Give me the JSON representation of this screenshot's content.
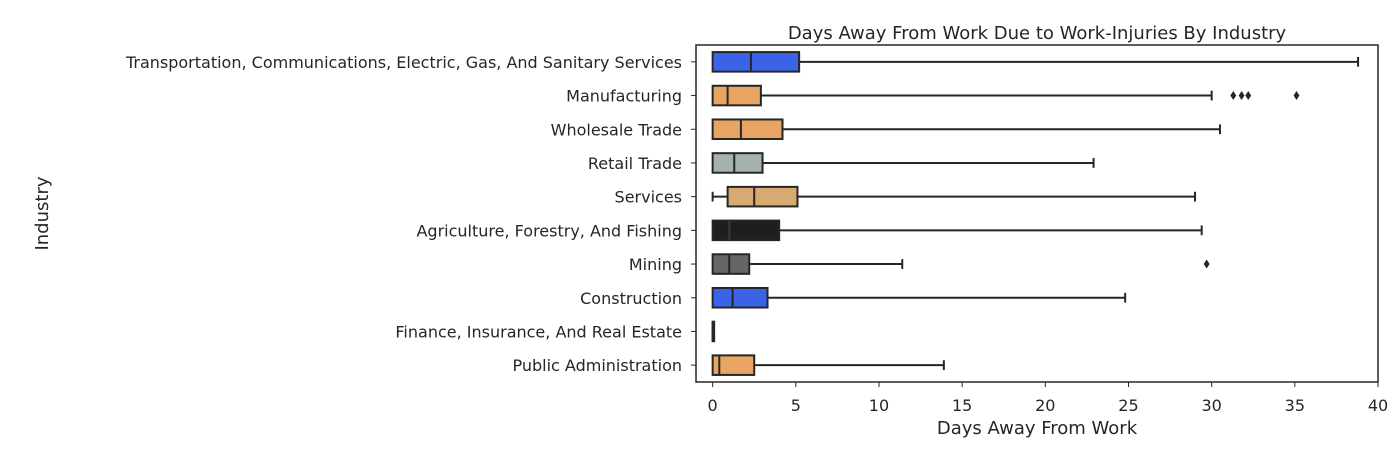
{
  "chart_data": {
    "type": "boxplot",
    "orientation": "horizontal",
    "title": "Days Away From Work Due to Work-Injuries By Industry",
    "xlabel": "Days Away From Work",
    "ylabel": "Industry",
    "xlim": [
      -1,
      40
    ],
    "xticks": [
      0,
      5,
      10,
      15,
      20,
      25,
      30,
      35,
      40
    ],
    "grid": false,
    "legend": "none",
    "categories": [
      "Transportation, Communications, Electric, Gas, And Sanitary Services",
      "Manufacturing",
      "Wholesale Trade",
      "Retail Trade",
      "Services",
      "Agriculture, Forestry, And Fishing",
      "Mining",
      "Construction",
      "Finance, Insurance, And Real Estate",
      "Public Administration"
    ],
    "boxes": [
      {
        "whisker_low": 0,
        "q1": 0,
        "median": 2.3,
        "q3": 5.2,
        "whisker_high": 38.8,
        "outliers": [],
        "color": "#3a63e8"
      },
      {
        "whisker_low": 0,
        "q1": 0,
        "median": 0.9,
        "q3": 2.9,
        "whisker_high": 30.0,
        "outliers": [
          31.3,
          31.8,
          32.2,
          35.1
        ],
        "color": "#e8a463"
      },
      {
        "whisker_low": 0,
        "q1": 0,
        "median": 1.7,
        "q3": 4.2,
        "whisker_high": 30.5,
        "outliers": [],
        "color": "#e8a463"
      },
      {
        "whisker_low": 0,
        "q1": 0,
        "median": 1.3,
        "q3": 3.0,
        "whisker_high": 22.9,
        "outliers": [],
        "color": "#a6b3ad"
      },
      {
        "whisker_low": 0,
        "q1": 0.9,
        "median": 2.5,
        "q3": 5.1,
        "whisker_high": 29.0,
        "outliers": [],
        "color": "#d8aa72"
      },
      {
        "whisker_low": 0,
        "q1": 0,
        "median": 1.0,
        "q3": 4.0,
        "whisker_high": 29.4,
        "outliers": [],
        "color": "#1e1e1e"
      },
      {
        "whisker_low": 0,
        "q1": 0,
        "median": 1.0,
        "q3": 2.2,
        "whisker_high": 11.4,
        "outliers": [
          29.7
        ],
        "color": "#666666"
      },
      {
        "whisker_low": 0,
        "q1": 0,
        "median": 1.2,
        "q3": 3.3,
        "whisker_high": 24.8,
        "outliers": [],
        "color": "#3a63e8"
      },
      {
        "whisker_low": 0,
        "q1": 0,
        "median": 0,
        "q3": 0,
        "whisker_high": 0,
        "outliers": [],
        "color": "#8a8a8a"
      },
      {
        "whisker_low": 0,
        "q1": 0,
        "median": 0.4,
        "q3": 2.5,
        "whisker_high": 13.9,
        "outliers": [],
        "color": "#e8a463"
      }
    ]
  }
}
